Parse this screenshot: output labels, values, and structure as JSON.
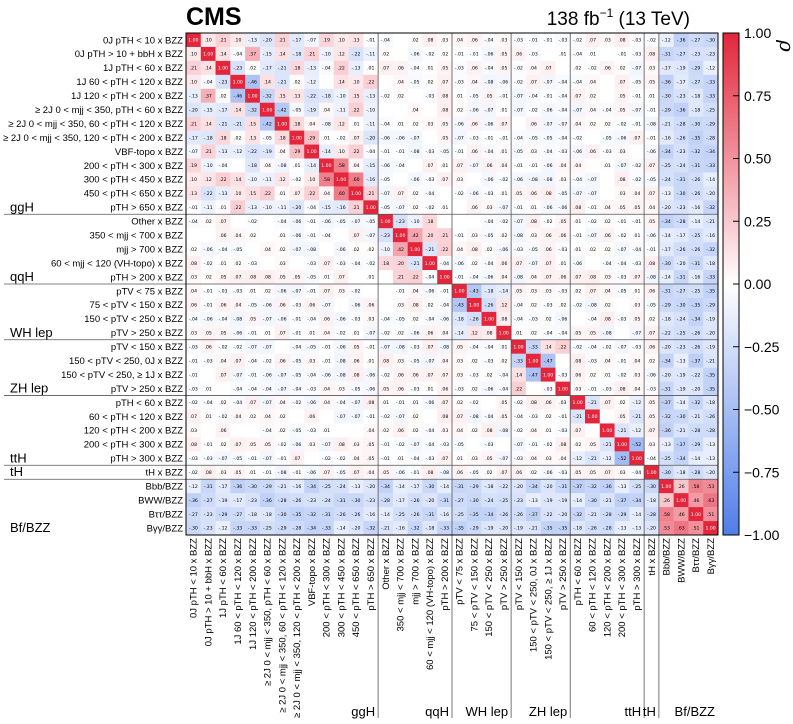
{
  "header": {
    "experiment": "CMS",
    "lumi": "138 fb",
    "lumi_exp": "−1",
    "energy": " (13 TeV)"
  },
  "chart_data": {
    "type": "heatmap",
    "title": "",
    "colorbar": {
      "label": "ρ",
      "range": [
        -1.0,
        1.0
      ],
      "ticks": [
        "1.00",
        "0.75",
        "0.50",
        "0.25",
        "0.00",
        "−0.25",
        "−0.50",
        "−0.75",
        "−1.00"
      ],
      "colors": {
        "negative": "#4f7de8",
        "zero": "#ffffff",
        "positive": "#e3263b"
      }
    },
    "parameters": [
      "0J pTH < 10 x BZZ",
      "0J pTH > 10 + bbH x BZZ",
      "1J pTH < 60 x BZZ",
      "1J 60 < pTH < 120 x BZZ",
      "1J 120 < pTH < 200 x BZZ",
      "≥ 2J 0 < mjj < 350, pTH < 60 x BZZ",
      "≥ 2J 0 < mjj < 350, 60 < pTH < 120 x BZZ",
      "≥ 2J 0 < mjj < 350, 120 < pTH < 200 x BZZ",
      "VBF-topo x BZZ",
      "200 < pTH < 300 x BZZ",
      "300 < pTH < 450 x BZZ",
      "450 < pTH < 650 x BZZ",
      "pTH > 650 x BZZ",
      "Other x BZZ",
      "350 < mjj < 700 x BZZ",
      "mjj > 700 x BZZ",
      "60 < mjj < 120 (VH-topo) x BZZ",
      "pTH > 200 x BZZ",
      "pTV < 75 x BZZ",
      "75 < pTV < 150 x BZZ",
      "150 < pTV < 250 x BZZ",
      "pTV > 250 x BZZ",
      "pTV < 150 x BZZ",
      "150 < pTV < 250, 0J x BZZ",
      "150 < pTV < 250, ≥ 1J x BZZ",
      "pTV > 250 x BZZ",
      "pTH < 60 x BZZ",
      "60 < pTH < 120 x BZZ",
      "120 < pTH < 200 x BZZ",
      "200 < pTH < 300 x BZZ",
      "pTH > 300 x BZZ",
      "tH x BZZ",
      "Bbb/BZZ",
      "BWW/BZZ",
      "Bττ/BZZ",
      "Bγγ/BZZ"
    ],
    "groups": [
      {
        "name": "ggH",
        "start": 0,
        "end": 12
      },
      {
        "name": "qqH",
        "start": 13,
        "end": 17
      },
      {
        "name": "WH lep",
        "start": 18,
        "end": 21
      },
      {
        "name": "ZH lep",
        "start": 22,
        "end": 25
      },
      {
        "name": "ttH",
        "start": 26,
        "end": 30
      },
      {
        "name": "tH",
        "start": 31,
        "end": 31
      },
      {
        "name": "Bf/BZZ",
        "start": 32,
        "end": 35
      }
    ],
    "sample_correlations": [
      {
        "row": 0,
        "col": 1,
        "value": 0.1
      },
      {
        "row": 0,
        "col": 2,
        "value": 0.21
      },
      {
        "row": 0,
        "col": 3,
        "value": 0.1
      },
      {
        "row": 1,
        "col": 2,
        "value": 0.14
      },
      {
        "row": 1,
        "col": 4,
        "value": 0.37
      },
      {
        "row": 9,
        "col": 10,
        "value": 0.58
      },
      {
        "row": 10,
        "col": 11,
        "value": 0.6
      },
      {
        "row": 13,
        "col": 14,
        "value": -0.23
      },
      {
        "row": 14,
        "col": 15,
        "value": 0.42
      },
      {
        "row": 15,
        "col": 16,
        "value": -0.21
      },
      {
        "row": 18,
        "col": 19,
        "value": -0.43
      },
      {
        "row": 19,
        "col": 20,
        "value": -0.26
      },
      {
        "row": 22,
        "col": 23,
        "value": -0.33
      },
      {
        "row": 23,
        "col": 24,
        "value": -0.47
      },
      {
        "row": 26,
        "col": 27,
        "value": -0.21
      },
      {
        "row": 29,
        "col": 30,
        "value": -0.52
      },
      {
        "row": 32,
        "col": 33,
        "value": 0.26
      },
      {
        "row": 33,
        "col": 34,
        "value": 0.46
      },
      {
        "row": 33,
        "col": 35,
        "value": 0.63
      },
      {
        "row": 34,
        "col": 35,
        "value": 0.51
      },
      {
        "row": 32,
        "col": 0,
        "value": -0.12
      },
      {
        "row": 33,
        "col": 0,
        "value": -0.36
      },
      {
        "row": 35,
        "col": 0,
        "value": -0.3
      }
    ]
  }
}
